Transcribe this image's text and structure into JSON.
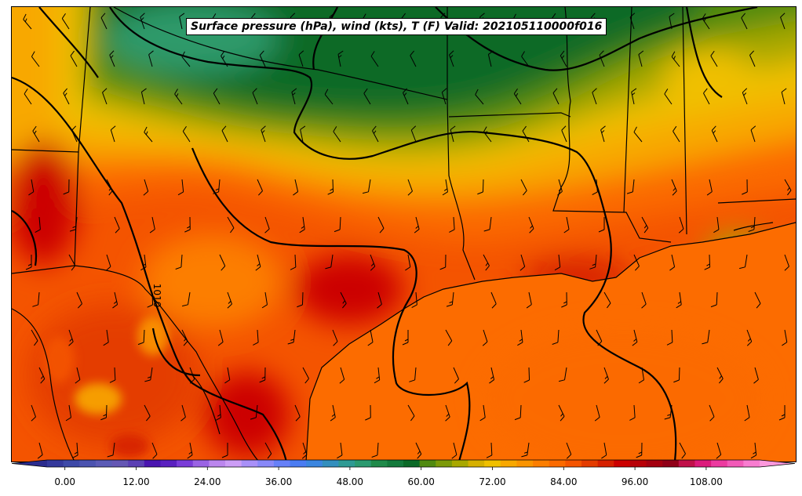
{
  "title": "Surface pressure (hPa), wind (kts), T (F) Valid: 202105110000f016",
  "isobar_label": "1010",
  "colorbar": {
    "min": -6,
    "max": 120,
    "step": 3,
    "tick_values": [
      0,
      12,
      24,
      36,
      48,
      60,
      72,
      84,
      96,
      108
    ],
    "tick_labels": [
      "0.00",
      "12.00",
      "24.00",
      "36.00",
      "48.00",
      "60.00",
      "72.00",
      "84.00",
      "96.00",
      "108.00"
    ],
    "colors": [
      "#2b2c8e",
      "#34399c",
      "#3d49a8",
      "#4b53b0",
      "#5b5bb6",
      "#6457b4",
      "#5b3fb4",
      "#4a14b0",
      "#5a20c0",
      "#7a3cd8",
      "#9a63e4",
      "#bb86ee",
      "#cc9df6",
      "#a890f8",
      "#8888f8",
      "#6680f8",
      "#4a7cf2",
      "#3b86e0",
      "#338fbe",
      "#2e9a94",
      "#2b9a70",
      "#1f8a4a",
      "#137a3c",
      "#0b6a28",
      "#508a10",
      "#7c9a08",
      "#a8a800",
      "#d6b000",
      "#f0c000",
      "#f8a800",
      "#fa9400",
      "#fc7e00",
      "#fb6a00",
      "#f45400",
      "#e43c00",
      "#d62000",
      "#cc0000",
      "#b80008",
      "#a40010",
      "#900018",
      "#c0104a",
      "#dc1a7c",
      "#ec3aa0",
      "#f25ab8",
      "#f87cd0",
      "#fc98dc"
    ]
  }
}
